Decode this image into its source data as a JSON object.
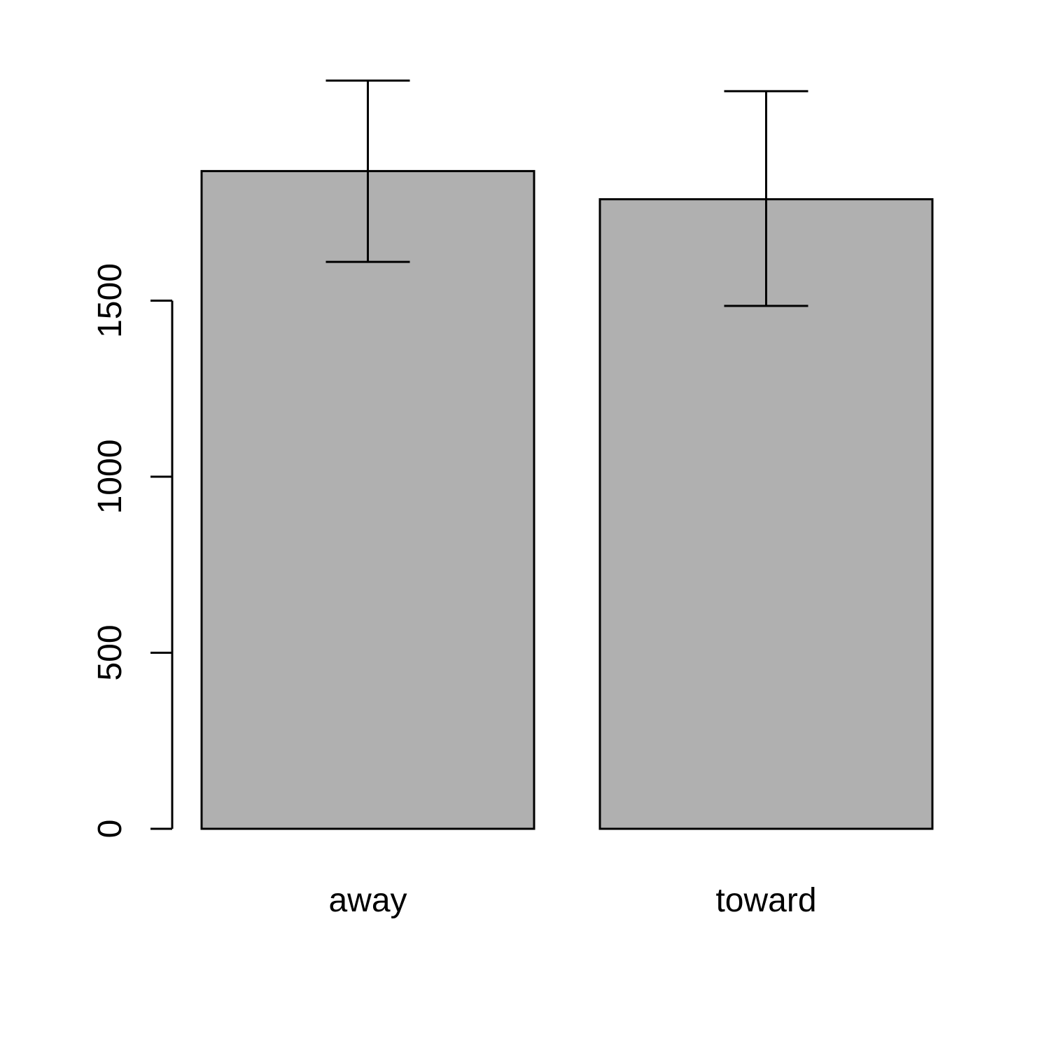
{
  "chart_data": {
    "type": "bar",
    "title": "",
    "xlabel": "",
    "ylabel": "",
    "categories": [
      "away",
      "toward"
    ],
    "values": [
      1868,
      1788
    ],
    "error_bars": [
      {
        "low": 1610,
        "high": 2125
      },
      {
        "low": 1485,
        "high": 2095
      }
    ],
    "yticks": [
      0,
      500,
      1000,
      1500
    ],
    "ytick_labels": [
      "0",
      "500",
      "1000",
      "1500"
    ],
    "ylim": [
      0,
      2160
    ],
    "grid": false,
    "legend": "none",
    "colors": {
      "bar_fill": "#b0b0b0",
      "stroke": "#000000",
      "background": "#ffffff"
    }
  }
}
